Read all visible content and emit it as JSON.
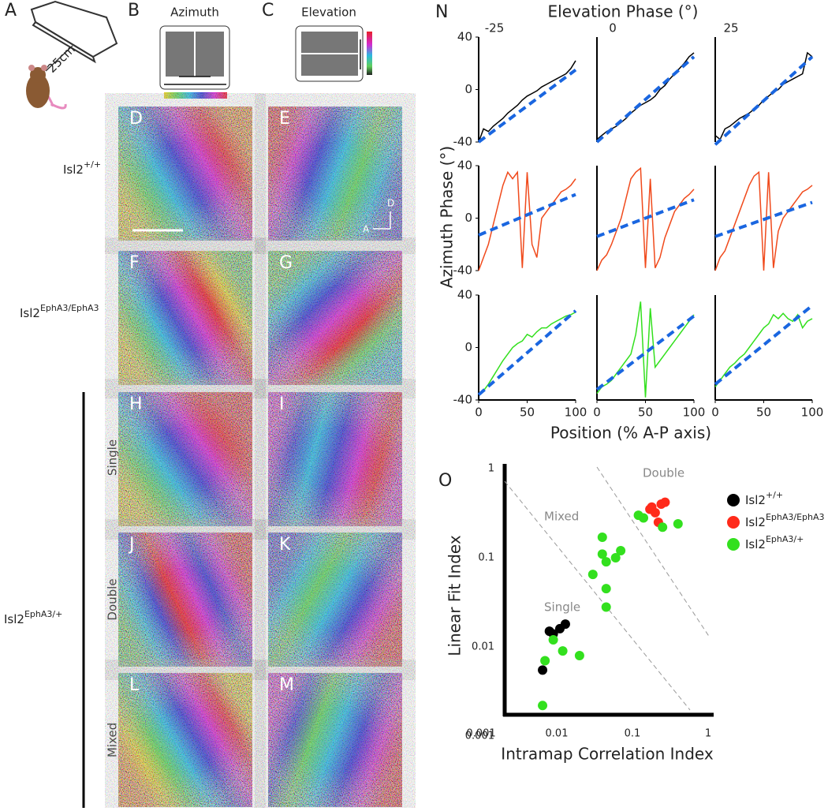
{
  "labels": {
    "a": "A",
    "b": "B",
    "c": "C",
    "azimuth": "Azimuth",
    "elevation": "Elevation",
    "distance": "25cm",
    "panels": [
      "D",
      "E",
      "F",
      "G",
      "H",
      "I",
      "J",
      "K",
      "L",
      "M"
    ],
    "genotype_wt": "Isl2+/+",
    "genotype_homo": "Isl2EphA3/EphA3",
    "genotype_het": "Isl2EphA3/+",
    "single": "Single",
    "double": "Double",
    "mixed": "Mixed",
    "compass_d": "D",
    "compass_a": "A",
    "n": "N",
    "o": "O"
  },
  "panel_n": {
    "title": "Elevation Phase (°)",
    "x_label": "Position (% A-P axis)",
    "y_label": "Azimuth Phase (°)"
  },
  "chart_data": [
    {
      "type": "line",
      "title": "-25",
      "x": [
        0,
        5,
        10,
        15,
        20,
        25,
        30,
        35,
        40,
        45,
        50,
        55,
        60,
        65,
        70,
        75,
        80,
        85,
        90,
        95,
        100
      ],
      "xlim": [
        0,
        100
      ],
      "ylim": [
        -40,
        40
      ],
      "yticks": [
        -40,
        0,
        40
      ],
      "series": [
        {
          "color": "#000000",
          "values": [
            -40,
            -30,
            -32,
            -28,
            -25,
            -22,
            -18,
            -15,
            -12,
            -8,
            -5,
            -3,
            -1,
            2,
            4,
            6,
            8,
            10,
            12,
            16,
            22
          ]
        },
        {
          "color": "#1a66e0",
          "dashed": true,
          "x": [
            0,
            100
          ],
          "values": [
            -40,
            15
          ]
        }
      ]
    },
    {
      "type": "line",
      "title": "0",
      "x": [
        0,
        5,
        10,
        15,
        20,
        25,
        30,
        35,
        40,
        45,
        50,
        55,
        60,
        65,
        70,
        75,
        80,
        85,
        90,
        95,
        100
      ],
      "xlim": [
        0,
        100
      ],
      "ylim": [
        -40,
        40
      ],
      "series": [
        {
          "color": "#000000",
          "values": [
            -38,
            -35,
            -32,
            -30,
            -28,
            -25,
            -22,
            -18,
            -15,
            -12,
            -10,
            -8,
            -5,
            0,
            3,
            8,
            12,
            16,
            20,
            25,
            28
          ]
        },
        {
          "color": "#1a66e0",
          "dashed": true,
          "x": [
            0,
            100
          ],
          "values": [
            -40,
            25
          ]
        }
      ]
    },
    {
      "type": "line",
      "title": "25",
      "x": [
        0,
        5,
        10,
        15,
        20,
        25,
        30,
        35,
        40,
        45,
        50,
        55,
        60,
        65,
        70,
        75,
        80,
        85,
        90,
        95,
        100
      ],
      "xlim": [
        0,
        100
      ],
      "ylim": [
        -40,
        40
      ],
      "series": [
        {
          "color": "#000000",
          "values": [
            -35,
            -38,
            -30,
            -28,
            -25,
            -22,
            -20,
            -18,
            -15,
            -12,
            -8,
            -5,
            -2,
            0,
            4,
            6,
            8,
            10,
            12,
            28,
            25
          ]
        },
        {
          "color": "#1a66e0",
          "dashed": true,
          "x": [
            0,
            100
          ],
          "values": [
            -42,
            25
          ]
        }
      ]
    },
    {
      "type": "line",
      "x": [
        0,
        5,
        10,
        15,
        20,
        25,
        30,
        35,
        40,
        45,
        50,
        55,
        60,
        65,
        70,
        75,
        80,
        85,
        90,
        95,
        100
      ],
      "xlim": [
        0,
        100
      ],
      "ylim": [
        -40,
        40
      ],
      "yticks": [
        -40,
        0,
        40
      ],
      "series": [
        {
          "color": "#f04a1c",
          "values": [
            -40,
            -30,
            -20,
            -5,
            10,
            25,
            35,
            30,
            35,
            -38,
            35,
            -20,
            -30,
            0,
            5,
            10,
            15,
            20,
            22,
            25,
            30
          ]
        },
        {
          "color": "#1a66e0",
          "dashed": true,
          "x": [
            0,
            100
          ],
          "values": [
            -13,
            18
          ]
        }
      ]
    },
    {
      "type": "line",
      "x": [
        0,
        5,
        10,
        15,
        20,
        25,
        30,
        35,
        40,
        45,
        50,
        55,
        60,
        65,
        70,
        75,
        80,
        85,
        90,
        95,
        100
      ],
      "xlim": [
        0,
        100
      ],
      "ylim": [
        -40,
        40
      ],
      "series": [
        {
          "color": "#f04a1c",
          "values": [
            -40,
            -32,
            -28,
            -20,
            -10,
            0,
            15,
            30,
            35,
            38,
            -38,
            30,
            -38,
            -30,
            -15,
            -5,
            5,
            10,
            15,
            18,
            22
          ]
        },
        {
          "color": "#1a66e0",
          "dashed": true,
          "x": [
            0,
            100
          ],
          "values": [
            -14,
            14
          ]
        }
      ]
    },
    {
      "type": "line",
      "x": [
        0,
        5,
        10,
        15,
        20,
        25,
        30,
        35,
        40,
        45,
        50,
        55,
        60,
        65,
        70,
        75,
        80,
        85,
        90,
        95,
        100
      ],
      "xlim": [
        0,
        100
      ],
      "ylim": [
        -40,
        40
      ],
      "series": [
        {
          "color": "#f04a1c",
          "values": [
            -40,
            -30,
            -25,
            -15,
            -5,
            5,
            15,
            25,
            32,
            35,
            -40,
            35,
            -38,
            -10,
            0,
            5,
            10,
            15,
            20,
            22,
            25
          ]
        },
        {
          "color": "#1a66e0",
          "dashed": true,
          "x": [
            0,
            100
          ],
          "values": [
            -14,
            12
          ]
        }
      ]
    },
    {
      "type": "line",
      "x": [
        0,
        5,
        10,
        15,
        20,
        25,
        30,
        35,
        40,
        45,
        50,
        55,
        60,
        65,
        70,
        75,
        80,
        85,
        90,
        95,
        100
      ],
      "xlim": [
        0,
        100
      ],
      "ylim": [
        -40,
        40
      ],
      "yticks": [
        -40,
        0,
        40
      ],
      "xticks": [
        0,
        50,
        100
      ],
      "series": [
        {
          "color": "#33e01e",
          "values": [
            -35,
            -33,
            -28,
            -22,
            -16,
            -10,
            -5,
            0,
            3,
            5,
            10,
            8,
            12,
            15,
            15,
            18,
            20,
            22,
            24,
            25,
            27
          ]
        },
        {
          "color": "#1a66e0",
          "dashed": true,
          "x": [
            0,
            100
          ],
          "values": [
            -36,
            28
          ]
        }
      ]
    },
    {
      "type": "line",
      "x": [
        0,
        5,
        10,
        15,
        20,
        25,
        30,
        35,
        40,
        45,
        50,
        55,
        60,
        65,
        70,
        75,
        80,
        85,
        90,
        95,
        100
      ],
      "xlim": [
        0,
        100
      ],
      "ylim": [
        -40,
        40
      ],
      "xticks": [
        0,
        50,
        100
      ],
      "series": [
        {
          "color": "#33e01e",
          "values": [
            -35,
            -30,
            -28,
            -25,
            -20,
            -15,
            -10,
            -5,
            10,
            35,
            -38,
            30,
            -15,
            -10,
            -5,
            0,
            5,
            10,
            15,
            20,
            25
          ]
        },
        {
          "color": "#1a66e0",
          "dashed": true,
          "x": [
            0,
            100
          ],
          "values": [
            -32,
            24
          ]
        }
      ]
    },
    {
      "type": "line",
      "x": [
        0,
        5,
        10,
        15,
        20,
        25,
        30,
        35,
        40,
        45,
        50,
        55,
        60,
        65,
        70,
        75,
        80,
        85,
        90,
        95,
        100
      ],
      "xlim": [
        0,
        100
      ],
      "ylim": [
        -40,
        40
      ],
      "xticks": [
        0,
        50,
        100
      ],
      "series": [
        {
          "color": "#33e01e",
          "values": [
            -30,
            -25,
            -20,
            -15,
            -12,
            -8,
            -5,
            0,
            5,
            10,
            15,
            18,
            25,
            22,
            26,
            22,
            20,
            25,
            15,
            20,
            22
          ]
        },
        {
          "color": "#1a66e0",
          "dashed": true,
          "x": [
            0,
            100
          ],
          "values": [
            -28,
            32
          ]
        }
      ]
    },
    {
      "type": "scatter",
      "log_scale": true,
      "x_label": "Intramap Correlation Index",
      "y_label": "Linear Fit Index",
      "xlim": [
        0.001,
        1
      ],
      "ylim": [
        0.001,
        1
      ],
      "xticks": [
        0.001,
        0.01,
        0.1,
        1
      ],
      "yticks": [
        0.001,
        0.01,
        0.1,
        1
      ],
      "annotations": [
        "Single",
        "Mixed",
        "Double"
      ],
      "series": [
        {
          "name": "Isl2+/+",
          "color": "#000000",
          "x": [
            0.0065,
            0.008,
            0.009,
            0.011,
            0.013
          ],
          "values": [
            0.0055,
            0.015,
            0.014,
            0.016,
            0.018
          ]
        },
        {
          "name": "Isl2EphA3/EphA3",
          "color": "#ff2a1a",
          "x": [
            0.17,
            0.18,
            0.2,
            0.22,
            0.24,
            0.27
          ],
          "values": [
            0.35,
            0.37,
            0.32,
            0.25,
            0.4,
            0.42
          ]
        },
        {
          "name": "Isl2EphA3/+",
          "color": "#33e01e",
          "x": [
            0.0065,
            0.007,
            0.009,
            0.012,
            0.02,
            0.03,
            0.04,
            0.04,
            0.045,
            0.045,
            0.045,
            0.06,
            0.07,
            0.12,
            0.14,
            0.25,
            0.4
          ],
          "values": [
            0.0022,
            0.007,
            0.012,
            0.009,
            0.008,
            0.065,
            0.17,
            0.11,
            0.09,
            0.045,
            0.028,
            0.1,
            0.12,
            0.3,
            0.28,
            0.22,
            0.24
          ]
        }
      ]
    }
  ]
}
